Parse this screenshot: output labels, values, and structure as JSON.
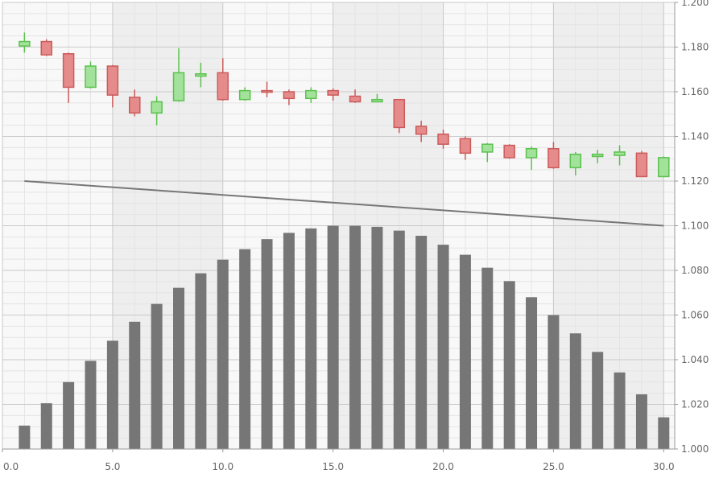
{
  "chart_data": {
    "type": "candlestick",
    "x_axis": {
      "ticks": [
        "0.0",
        "5.0",
        "10.0",
        "15.0",
        "20.0",
        "25.0",
        "30.0"
      ],
      "range": [
        0,
        30.5
      ]
    },
    "y_axis": {
      "ticks": [
        "1.000",
        "1.020",
        "1.040",
        "1.060",
        "1.080",
        "1.100",
        "1.120",
        "1.140",
        "1.160",
        "1.180",
        "1.200"
      ],
      "range": [
        1.0,
        1.2
      ],
      "position": "right"
    },
    "grid": true,
    "candles": [
      {
        "x": 1,
        "open": 1.1805,
        "high": 1.1865,
        "low": 1.1775,
        "close": 1.1825
      },
      {
        "x": 2,
        "open": 1.1825,
        "high": 1.1835,
        "low": 1.176,
        "close": 1.1765
      },
      {
        "x": 3,
        "open": 1.177,
        "high": 1.1775,
        "low": 1.155,
        "close": 1.162
      },
      {
        "x": 4,
        "open": 1.162,
        "high": 1.1735,
        "low": 1.1615,
        "close": 1.1715
      },
      {
        "x": 5,
        "open": 1.1715,
        "high": 1.172,
        "low": 1.153,
        "close": 1.1585
      },
      {
        "x": 6,
        "open": 1.1575,
        "high": 1.161,
        "low": 1.149,
        "close": 1.1505
      },
      {
        "x": 7,
        "open": 1.1505,
        "high": 1.158,
        "low": 1.145,
        "close": 1.1555
      },
      {
        "x": 8,
        "open": 1.156,
        "high": 1.1795,
        "low": 1.1555,
        "close": 1.1685
      },
      {
        "x": 9,
        "open": 1.167,
        "high": 1.173,
        "low": 1.162,
        "close": 1.168
      },
      {
        "x": 10,
        "open": 1.1685,
        "high": 1.175,
        "low": 1.156,
        "close": 1.1565
      },
      {
        "x": 11,
        "open": 1.1565,
        "high": 1.162,
        "low": 1.156,
        "close": 1.1605
      },
      {
        "x": 12,
        "open": 1.1605,
        "high": 1.1645,
        "low": 1.1575,
        "close": 1.16
      },
      {
        "x": 13,
        "open": 1.16,
        "high": 1.161,
        "low": 1.154,
        "close": 1.157
      },
      {
        "x": 14,
        "open": 1.157,
        "high": 1.162,
        "low": 1.155,
        "close": 1.1605
      },
      {
        "x": 15,
        "open": 1.1605,
        "high": 1.1615,
        "low": 1.156,
        "close": 1.1585
      },
      {
        "x": 16,
        "open": 1.158,
        "high": 1.161,
        "low": 1.155,
        "close": 1.1555
      },
      {
        "x": 17,
        "open": 1.1555,
        "high": 1.159,
        "low": 1.1555,
        "close": 1.1565
      },
      {
        "x": 18,
        "open": 1.1565,
        "high": 1.1565,
        "low": 1.1415,
        "close": 1.144
      },
      {
        "x": 19,
        "open": 1.1445,
        "high": 1.147,
        "low": 1.1375,
        "close": 1.141
      },
      {
        "x": 20,
        "open": 1.141,
        "high": 1.143,
        "low": 1.1345,
        "close": 1.1365
      },
      {
        "x": 21,
        "open": 1.139,
        "high": 1.14,
        "low": 1.1295,
        "close": 1.1325
      },
      {
        "x": 22,
        "open": 1.133,
        "high": 1.137,
        "low": 1.1285,
        "close": 1.1365
      },
      {
        "x": 23,
        "open": 1.136,
        "high": 1.1365,
        "low": 1.13,
        "close": 1.1305
      },
      {
        "x": 24,
        "open": 1.1305,
        "high": 1.1355,
        "low": 1.125,
        "close": 1.1345
      },
      {
        "x": 25,
        "open": 1.1345,
        "high": 1.1375,
        "low": 1.1255,
        "close": 1.126
      },
      {
        "x": 26,
        "open": 1.126,
        "high": 1.133,
        "low": 1.1225,
        "close": 1.132
      },
      {
        "x": 27,
        "open": 1.131,
        "high": 1.134,
        "low": 1.128,
        "close": 1.132
      },
      {
        "x": 28,
        "open": 1.1315,
        "high": 1.136,
        "low": 1.127,
        "close": 1.133
      },
      {
        "x": 29,
        "open": 1.1325,
        "high": 1.1335,
        "low": 1.122,
        "close": 1.122
      },
      {
        "x": 30,
        "open": 1.122,
        "high": 1.131,
        "low": 1.122,
        "close": 1.1305
      }
    ],
    "bars": {
      "x": [
        1,
        2,
        3,
        4,
        5,
        6,
        7,
        8,
        9,
        10,
        11,
        12,
        13,
        14,
        15,
        16,
        17,
        18,
        19,
        20,
        21,
        22,
        23,
        24,
        25,
        26,
        27,
        28,
        29,
        30
      ],
      "values": [
        1.0105,
        1.0205,
        1.03,
        1.0395,
        1.0485,
        1.057,
        1.065,
        1.0722,
        1.0787,
        1.0848,
        1.0895,
        1.094,
        1.0968,
        1.0988,
        1.1,
        1.1,
        1.0995,
        1.0978,
        1.0955,
        1.0915,
        1.087,
        1.0812,
        1.0752,
        1.068,
        1.06,
        1.0518,
        1.0435,
        1.0343,
        1.0245,
        1.0142
      ]
    },
    "trend_line": {
      "x": [
        1,
        30
      ],
      "y": [
        1.12,
        1.1
      ]
    },
    "colors": {
      "up_fill": "#a3e29b",
      "up_stroke": "#5cc14f",
      "down_fill": "#e58b8b",
      "down_stroke": "#cc5b5b",
      "bar_fill": "#767676",
      "trend_line": "#777777",
      "grid_major": "#c9c9c9",
      "grid_minor": "#e4e4e4",
      "band_dark": "#eeeeee",
      "band_light": "#f8f8f8",
      "tick_text": "#666666"
    }
  }
}
